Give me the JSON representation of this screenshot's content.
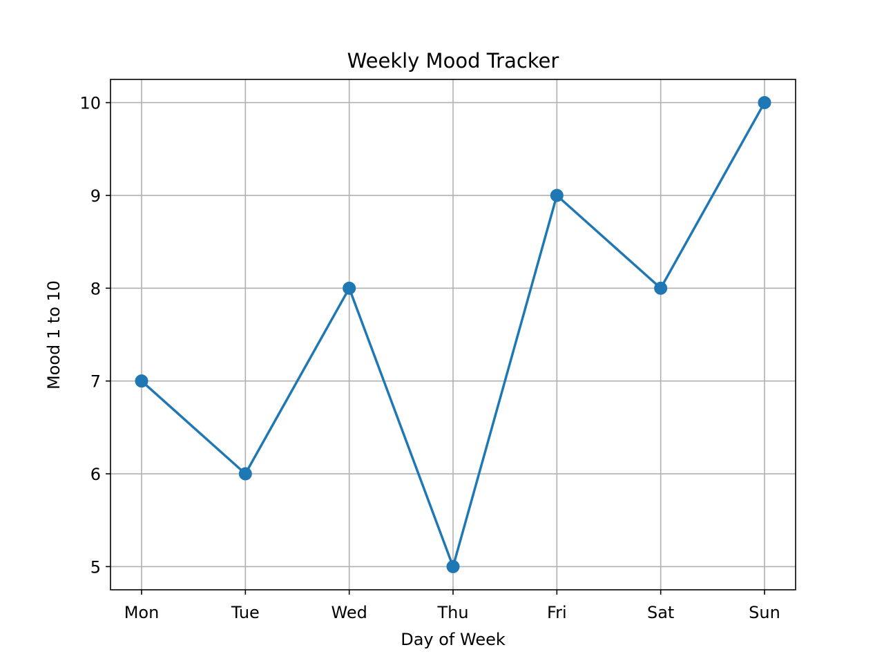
{
  "chart_data": {
    "type": "line",
    "title": "Weekly Mood Tracker",
    "xlabel": "Day of Week",
    "ylabel": "Mood 1 to 10",
    "categories": [
      "Mon",
      "Tue",
      "Wed",
      "Thu",
      "Fri",
      "Sat",
      "Sun"
    ],
    "series": [
      {
        "values": [
          7,
          6,
          8,
          5,
          9,
          8,
          10
        ],
        "color": "#1f77b4",
        "marker": "circle"
      }
    ],
    "ylim": [
      4.75,
      10.25
    ],
    "yticks": [
      5,
      6,
      7,
      8,
      9,
      10
    ],
    "grid": true,
    "legend": "none"
  }
}
